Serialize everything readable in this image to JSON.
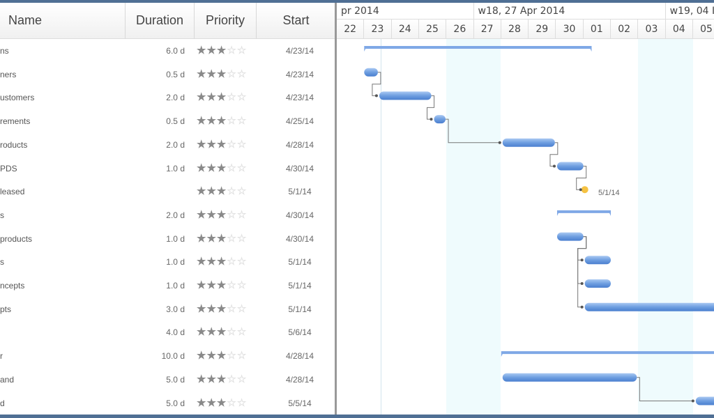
{
  "grid": {
    "columns": [
      "Name",
      "Duration",
      "Priority",
      "Start"
    ],
    "rows": [
      {
        "name": "ns",
        "duration": "6.0 d",
        "priority": 3,
        "start": "4/23/14"
      },
      {
        "name": "ners",
        "duration": "0.5 d",
        "priority": 3,
        "start": "4/23/14"
      },
      {
        "name": "ustomers",
        "duration": "2.0 d",
        "priority": 3,
        "start": "4/23/14"
      },
      {
        "name": "rements",
        "duration": "0.5 d",
        "priority": 3,
        "start": "4/25/14"
      },
      {
        "name": "roducts",
        "duration": "2.0 d",
        "priority": 3,
        "start": "4/28/14"
      },
      {
        "name": "PDS",
        "duration": "1.0 d",
        "priority": 3,
        "start": "4/30/14"
      },
      {
        "name": "leased",
        "duration": "",
        "priority": 3,
        "start": "5/1/14"
      },
      {
        "name": "s",
        "duration": "2.0 d",
        "priority": 3,
        "start": "4/30/14"
      },
      {
        "name": "products",
        "duration": "1.0 d",
        "priority": 3,
        "start": "4/30/14"
      },
      {
        "name": "s",
        "duration": "1.0 d",
        "priority": 3,
        "start": "5/1/14"
      },
      {
        "name": "ncepts",
        "duration": "1.0 d",
        "priority": 3,
        "start": "5/1/14"
      },
      {
        "name": "pts",
        "duration": "3.0 d",
        "priority": 3,
        "start": "5/1/14"
      },
      {
        "name": "",
        "duration": "4.0 d",
        "priority": 3,
        "start": "5/6/14"
      },
      {
        "name": "r",
        "duration": "10.0 d",
        "priority": 3,
        "start": "4/28/14"
      },
      {
        "name": "and",
        "duration": "5.0 d",
        "priority": 3,
        "start": "4/28/14"
      },
      {
        "name": "d",
        "duration": "5.0 d",
        "priority": 3,
        "start": "5/5/14"
      }
    ]
  },
  "timeline": {
    "weeks": [
      "pr 2014",
      "w18, 27 Apr 2014",
      "w19, 04 I"
    ],
    "days": [
      "22",
      "23",
      "24",
      "25",
      "26",
      "27",
      "28",
      "29",
      "30",
      "01",
      "02",
      "03",
      "04",
      "05"
    ],
    "milestone_label": "5/1/14"
  },
  "colors": {
    "bar": "#6e9ee0",
    "summary": "#7fa8e6",
    "milestone": "#f5c242",
    "frame": "#4f6f94"
  }
}
